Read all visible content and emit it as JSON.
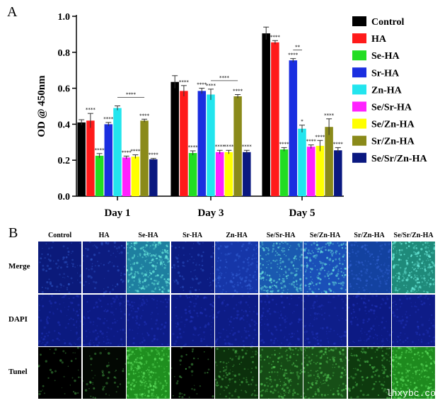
{
  "panel_labels": {
    "a": "A",
    "b": "B"
  },
  "chart_data": {
    "type": "bar",
    "title": "",
    "xlabel": "",
    "ylabel": "OD @ 450nm",
    "ylim": [
      0,
      1.0
    ],
    "yticks": [
      "0.0",
      "0.2",
      "0.4",
      "0.6",
      "0.8",
      "1.0"
    ],
    "categories": [
      "Day 1",
      "Day 3",
      "Day 5"
    ],
    "legend_position": "right",
    "series": [
      {
        "name": "Control",
        "color": "#000000",
        "values": [
          0.41,
          0.635,
          0.905
        ],
        "errors": [
          0.015,
          0.035,
          0.035
        ],
        "stars": [
          "",
          "",
          ""
        ]
      },
      {
        "name": "HA",
        "color": "#ff1a1a",
        "values": [
          0.42,
          0.585,
          0.855
        ],
        "errors": [
          0.04,
          0.03,
          0.01
        ],
        "stars": [
          "****",
          "****",
          "****"
        ]
      },
      {
        "name": "Se-HA",
        "color": "#22dd22",
        "values": [
          0.225,
          0.24,
          0.26
        ],
        "errors": [
          0.012,
          0.012,
          0.01
        ],
        "stars": [
          "****",
          "****",
          "****"
        ]
      },
      {
        "name": "Sr-HA",
        "color": "#1a2ee0",
        "values": [
          0.4,
          0.585,
          0.755
        ],
        "errors": [
          0.01,
          0.015,
          0.01
        ],
        "stars": [
          "****",
          "****",
          "****"
        ]
      },
      {
        "name": "Zn-HA",
        "color": "#22e5ee",
        "values": [
          0.49,
          0.565,
          0.375
        ],
        "errors": [
          0.012,
          0.03,
          0.02
        ],
        "stars": [
          "",
          "****",
          "*"
        ]
      },
      {
        "name": "Se/Sr-HA",
        "color": "#ff22ff",
        "values": [
          0.215,
          0.245,
          0.275
        ],
        "errors": [
          0.008,
          0.01,
          0.01
        ],
        "stars": [
          "****",
          "****",
          "****"
        ]
      },
      {
        "name": "Se/Zn-HA",
        "color": "#ffff00",
        "values": [
          0.22,
          0.245,
          0.28
        ],
        "errors": [
          0.01,
          0.01,
          0.03
        ],
        "stars": [
          "****",
          "****",
          "****"
        ]
      },
      {
        "name": "Sr/Zn-HA",
        "color": "#8a8a1a",
        "values": [
          0.42,
          0.555,
          0.385
        ],
        "errors": [
          0.008,
          0.01,
          0.045
        ],
        "stars": [
          "****",
          "****",
          "****"
        ]
      },
      {
        "name": "Se/Sr/Zn-HA",
        "color": "#0a1880",
        "values": [
          0.205,
          0.245,
          0.255
        ],
        "errors": [
          0.005,
          0.01,
          0.015
        ],
        "stars": [
          "****",
          "****",
          "****"
        ]
      }
    ],
    "comparison_brackets": [
      {
        "category": 0,
        "from": 4,
        "to": 7,
        "stars": "****"
      },
      {
        "category": 1,
        "from": 4,
        "to": 7,
        "stars": "****"
      },
      {
        "category": 2,
        "from": 3,
        "to": 4,
        "stars": "**"
      }
    ]
  },
  "image_grid": {
    "columns": [
      "Control",
      "HA",
      "Se-HA",
      "Sr-HA",
      "Zn-HA",
      "Se/Sr-HA",
      "Se/Zn-HA",
      "Sr/Zn-HA",
      "Se/Sr/Zn-HA"
    ],
    "rows": [
      "Merge",
      "DAPI",
      "Tunel"
    ],
    "tile_colors": {
      "Merge": [
        "#0b1a7a",
        "#0d1c80",
        "#1e7fa0",
        "#0c1c82",
        "#1636a8",
        "#1a5ab0",
        "#1a50b8",
        "#1342a0",
        "#1f8a7a"
      ],
      "DAPI": [
        "#0b1a80",
        "#0c1a84",
        "#0d1c88",
        "#0c1a84",
        "#0d1c86",
        "#0d1c88",
        "#0e1e8a",
        "#0c1a84",
        "#0e1c88"
      ],
      "Tunel": [
        "#000000",
        "#030803",
        "#1f8f1f",
        "#000000",
        "#0c300c",
        "#154a15",
        "#174f17",
        "#0e3a0e",
        "#1e8a1e"
      ]
    },
    "speckle_intensity": {
      "Merge": [
        0.2,
        0.2,
        0.9,
        0.2,
        0.5,
        0.7,
        0.7,
        0.5,
        0.9
      ],
      "DAPI": [
        0.3,
        0.3,
        0.3,
        0.3,
        0.3,
        0.3,
        0.3,
        0.3,
        0.3
      ],
      "Tunel": [
        0.0,
        0.05,
        0.9,
        0.0,
        0.35,
        0.55,
        0.55,
        0.4,
        0.85
      ]
    }
  },
  "watermark": "lhxybc.co"
}
